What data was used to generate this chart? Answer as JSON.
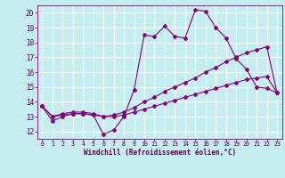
{
  "xlabel": "Windchill (Refroidissement éolien,°C)",
  "x_ticks": [
    0,
    1,
    2,
    3,
    4,
    5,
    6,
    7,
    8,
    9,
    10,
    11,
    12,
    13,
    14,
    15,
    16,
    17,
    18,
    19,
    20,
    21,
    22,
    23
  ],
  "xlim": [
    -0.5,
    23.5
  ],
  "ylim": [
    11.5,
    20.5
  ],
  "y_ticks": [
    12,
    13,
    14,
    15,
    16,
    17,
    18,
    19,
    20
  ],
  "bg_color": "#c5ecee",
  "grid_color": "#ffffff",
  "line_color": "#800080",
  "line1_y": [
    13.7,
    12.7,
    13.0,
    13.2,
    13.2,
    13.1,
    11.8,
    12.1,
    13.0,
    14.8,
    18.5,
    18.4,
    19.1,
    18.4,
    18.3,
    20.2,
    20.1,
    19.0,
    18.3,
    16.9,
    16.2,
    15.0,
    14.9,
    14.6
  ],
  "line2_y": [
    13.7,
    13.0,
    13.2,
    13.3,
    13.3,
    13.2,
    13.0,
    13.1,
    13.3,
    13.6,
    14.0,
    14.3,
    14.7,
    15.0,
    15.3,
    15.6,
    16.0,
    16.3,
    16.7,
    17.0,
    17.3,
    17.5,
    17.7,
    14.6
  ],
  "line3_y": [
    13.7,
    13.0,
    13.1,
    13.2,
    13.2,
    13.1,
    13.0,
    13.0,
    13.1,
    13.3,
    13.5,
    13.7,
    13.9,
    14.1,
    14.3,
    14.5,
    14.7,
    14.9,
    15.1,
    15.3,
    15.5,
    15.6,
    15.7,
    14.6
  ],
  "tick_color": "#550055",
  "label_color": "#550055",
  "xlabel_fontsize": 5.5,
  "ytick_fontsize": 5.5,
  "xtick_fontsize": 4.8
}
